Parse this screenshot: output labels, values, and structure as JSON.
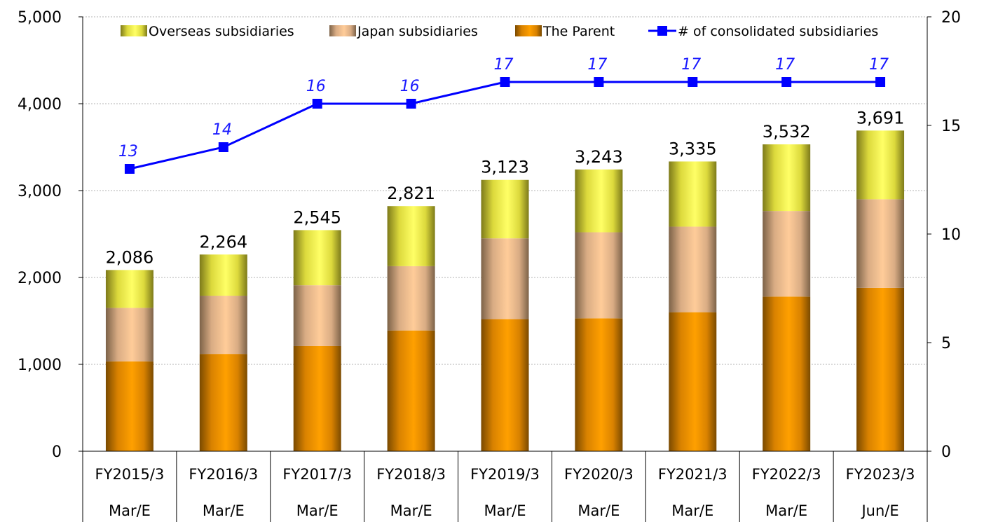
{
  "chart_data": {
    "type": "bar",
    "stacked": true,
    "categories": [
      [
        "FY2015/3",
        "Mar/E"
      ],
      [
        "FY2016/3",
        "Mar/E"
      ],
      [
        "FY2017/3",
        "Mar/E"
      ],
      [
        "FY2018/3",
        "Mar/E"
      ],
      [
        "FY2019/3",
        "Mar/E"
      ],
      [
        "FY2020/3",
        "Mar/E"
      ],
      [
        "FY2021/3",
        "Mar/E"
      ],
      [
        "FY2022/3",
        "Mar/E"
      ],
      [
        "FY2023/3",
        "Jun/E"
      ]
    ],
    "series": [
      {
        "name": "The Parent",
        "color": "#ff9900",
        "values": [
          1035,
          1120,
          1210,
          1390,
          1520,
          1530,
          1600,
          1780,
          1880
        ]
      },
      {
        "name": "Japan subsidiaries",
        "color": "#ffcc99",
        "values": [
          615,
          670,
          700,
          740,
          930,
          990,
          985,
          985,
          1020
        ]
      },
      {
        "name": "Overseas subsidiaries",
        "color": "#ffff66",
        "values": [
          436,
          474,
          635,
          691,
          673,
          723,
          750,
          767,
          791
        ]
      }
    ],
    "totals": [
      "2,086",
      "2,264",
      "2,545",
      "2,821",
      "3,123",
      "3,243",
      "3,335",
      "3,532",
      "3,691"
    ],
    "line_series": {
      "name": "# of consolidated subsidiaries",
      "color": "#0000ff",
      "axis": "right",
      "values": [
        13,
        14,
        16,
        16,
        17,
        17,
        17,
        17,
        17
      ]
    },
    "y_left": {
      "ylim": [
        0,
        5000
      ],
      "ticks": [
        "0",
        "1,000",
        "2,000",
        "3,000",
        "4,000",
        "5,000"
      ]
    },
    "y_right": {
      "ylim": [
        0,
        20
      ],
      "ticks": [
        "0",
        "5",
        "10",
        "15",
        "20"
      ]
    },
    "grid": true,
    "legend_position": "top",
    "legend_order": [
      "Overseas subsidiaries",
      "Japan subsidiaries",
      "The Parent",
      "# of consolidated subsidiaries"
    ]
  }
}
